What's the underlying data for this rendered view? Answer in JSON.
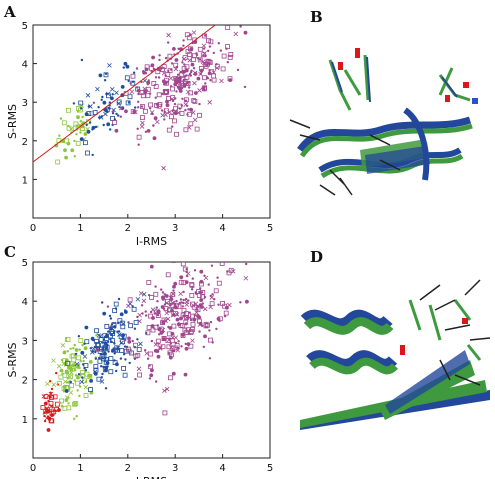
{
  "panels": {
    "A": {
      "letter": "A"
    },
    "B": {
      "letter": "B"
    },
    "C": {
      "letter": "C"
    },
    "D": {
      "letter": "D"
    }
  },
  "colors": {
    "red": "#d7191c",
    "green": "#8cc63f",
    "blue": "#1f4e9c",
    "purple": "#a0468f",
    "fit_line": "#d7191c",
    "ribbon_green": "#3f9a3f",
    "ribbon_blue": "#23479a",
    "stick_dark": "#222222",
    "stick_red": "#d7191c"
  },
  "chart_data": [
    {
      "panel": "A",
      "type": "scatter",
      "xlabel": "I-RMS",
      "ylabel": "S-RMS",
      "xlim": [
        0,
        5
      ],
      "ylim": [
        0,
        5
      ],
      "xticks": [
        "0",
        "1",
        "2",
        "3",
        "4",
        "5"
      ],
      "yticks": [
        "1",
        "2",
        "3",
        "4",
        "5"
      ],
      "grid": false,
      "series": [
        {
          "color": "green",
          "count": 45,
          "cx": 0.9,
          "cy": 2.3,
          "sx": 0.22,
          "sy": 0.35
        },
        {
          "color": "blue",
          "count": 80,
          "cx": 1.6,
          "cy": 2.9,
          "sx": 0.32,
          "sy": 0.5
        },
        {
          "color": "purple",
          "count": 320,
          "cx": 3.1,
          "cy": 3.6,
          "sx": 0.55,
          "sy": 0.6
        }
      ],
      "fit_line": {
        "x": [
          0,
          3.9
        ],
        "y": [
          1.45,
          5.05
        ]
      }
    },
    {
      "panel": "C",
      "type": "scatter",
      "xlabel": "I-RMS",
      "ylabel": "S-RMS",
      "xlim": [
        0,
        5
      ],
      "ylim": [
        0,
        5
      ],
      "xticks": [
        "0",
        "1",
        "2",
        "3",
        "4",
        "5"
      ],
      "yticks": [
        "1",
        "2",
        "3",
        "4",
        "5"
      ],
      "grid": false,
      "series": [
        {
          "color": "red",
          "count": 45,
          "cx": 0.35,
          "cy": 1.2,
          "sx": 0.08,
          "sy": 0.28
        },
        {
          "color": "green",
          "count": 110,
          "cx": 0.8,
          "cy": 2.1,
          "sx": 0.18,
          "sy": 0.38
        },
        {
          "color": "blue",
          "count": 170,
          "cx": 1.6,
          "cy": 2.85,
          "sx": 0.3,
          "sy": 0.45
        },
        {
          "color": "purple",
          "count": 320,
          "cx": 3.1,
          "cy": 3.65,
          "sx": 0.55,
          "sy": 0.6
        }
      ]
    }
  ]
}
